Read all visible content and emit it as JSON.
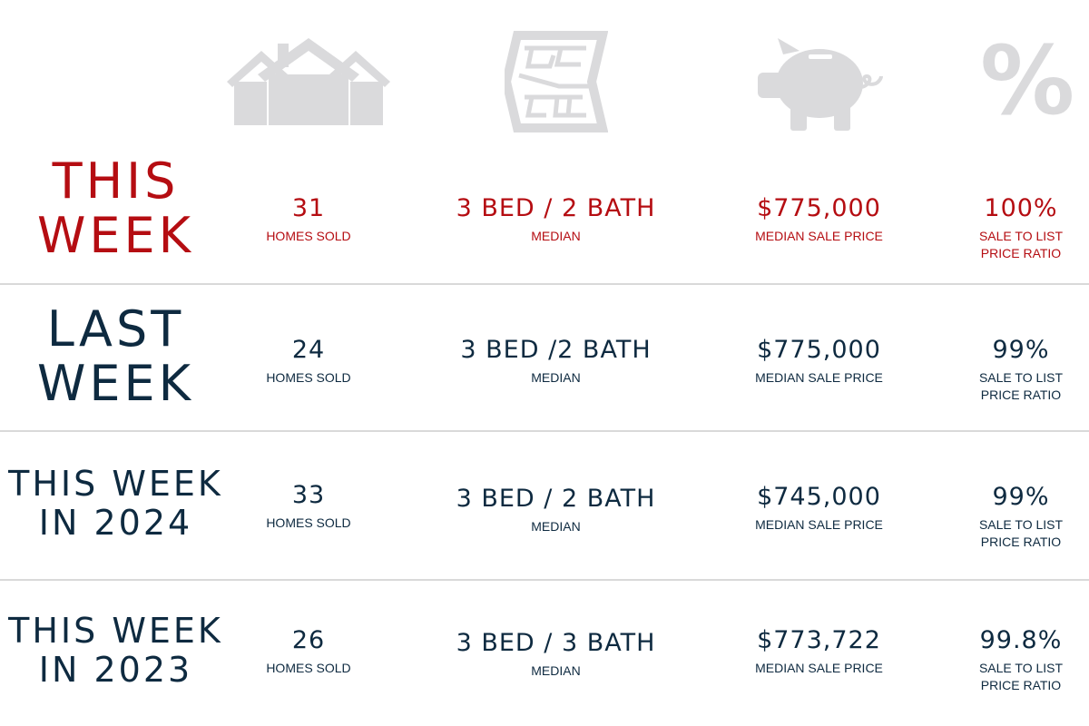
{
  "colors": {
    "red": "#b50d12",
    "navy": "#0e2a40",
    "icon_gray": "#dadadc",
    "divider": "#d9d9d9"
  },
  "icons": [
    "houses-icon",
    "floor-plan-icon",
    "piggy-bank-icon",
    "percent-icon"
  ],
  "icon_text": {
    "percent": "%"
  },
  "rows": [
    {
      "label": [
        "THIS",
        "WEEK"
      ],
      "homes_sold": "31",
      "homes_sold_label": "HOMES SOLD",
      "beds_baths": "3 BED / 2 BATH",
      "beds_baths_label": "MEDIAN",
      "price": "$775,000",
      "price_label": "MEDIAN SALE PRICE",
      "ratio": "100%",
      "ratio_label": [
        "SALE TO LIST",
        "PRICE RATIO"
      ]
    },
    {
      "label": [
        "LAST",
        "WEEK"
      ],
      "homes_sold": "24",
      "homes_sold_label": "HOMES SOLD",
      "beds_baths": "3 BED /2 BATH",
      "beds_baths_label": "MEDIAN",
      "price": "$775,000",
      "price_label": "MEDIAN SALE PRICE",
      "ratio": "99%",
      "ratio_label": [
        "SALE TO LIST",
        "PRICE RATIO"
      ]
    },
    {
      "label": [
        "THIS WEEK",
        "IN 2024"
      ],
      "homes_sold": "33",
      "homes_sold_label": "HOMES SOLD",
      "beds_baths": "3 BED / 2 BATH",
      "beds_baths_label": "MEDIAN",
      "price": "$745,000",
      "price_label": "MEDIAN SALE PRICE",
      "ratio": "99%",
      "ratio_label": [
        "SALE TO LIST",
        "PRICE RATIO"
      ]
    },
    {
      "label": [
        "THIS WEEK",
        "IN 2023"
      ],
      "homes_sold": "26",
      "homes_sold_label": "HOMES SOLD",
      "beds_baths": "3 BED / 3 BATH",
      "beds_baths_label": "MEDIAN",
      "price": "$773,722",
      "price_label": "MEDIAN SALE PRICE",
      "ratio": "99.8%",
      "ratio_label": [
        "SALE TO LIST",
        "PRICE RATIO"
      ]
    }
  ]
}
